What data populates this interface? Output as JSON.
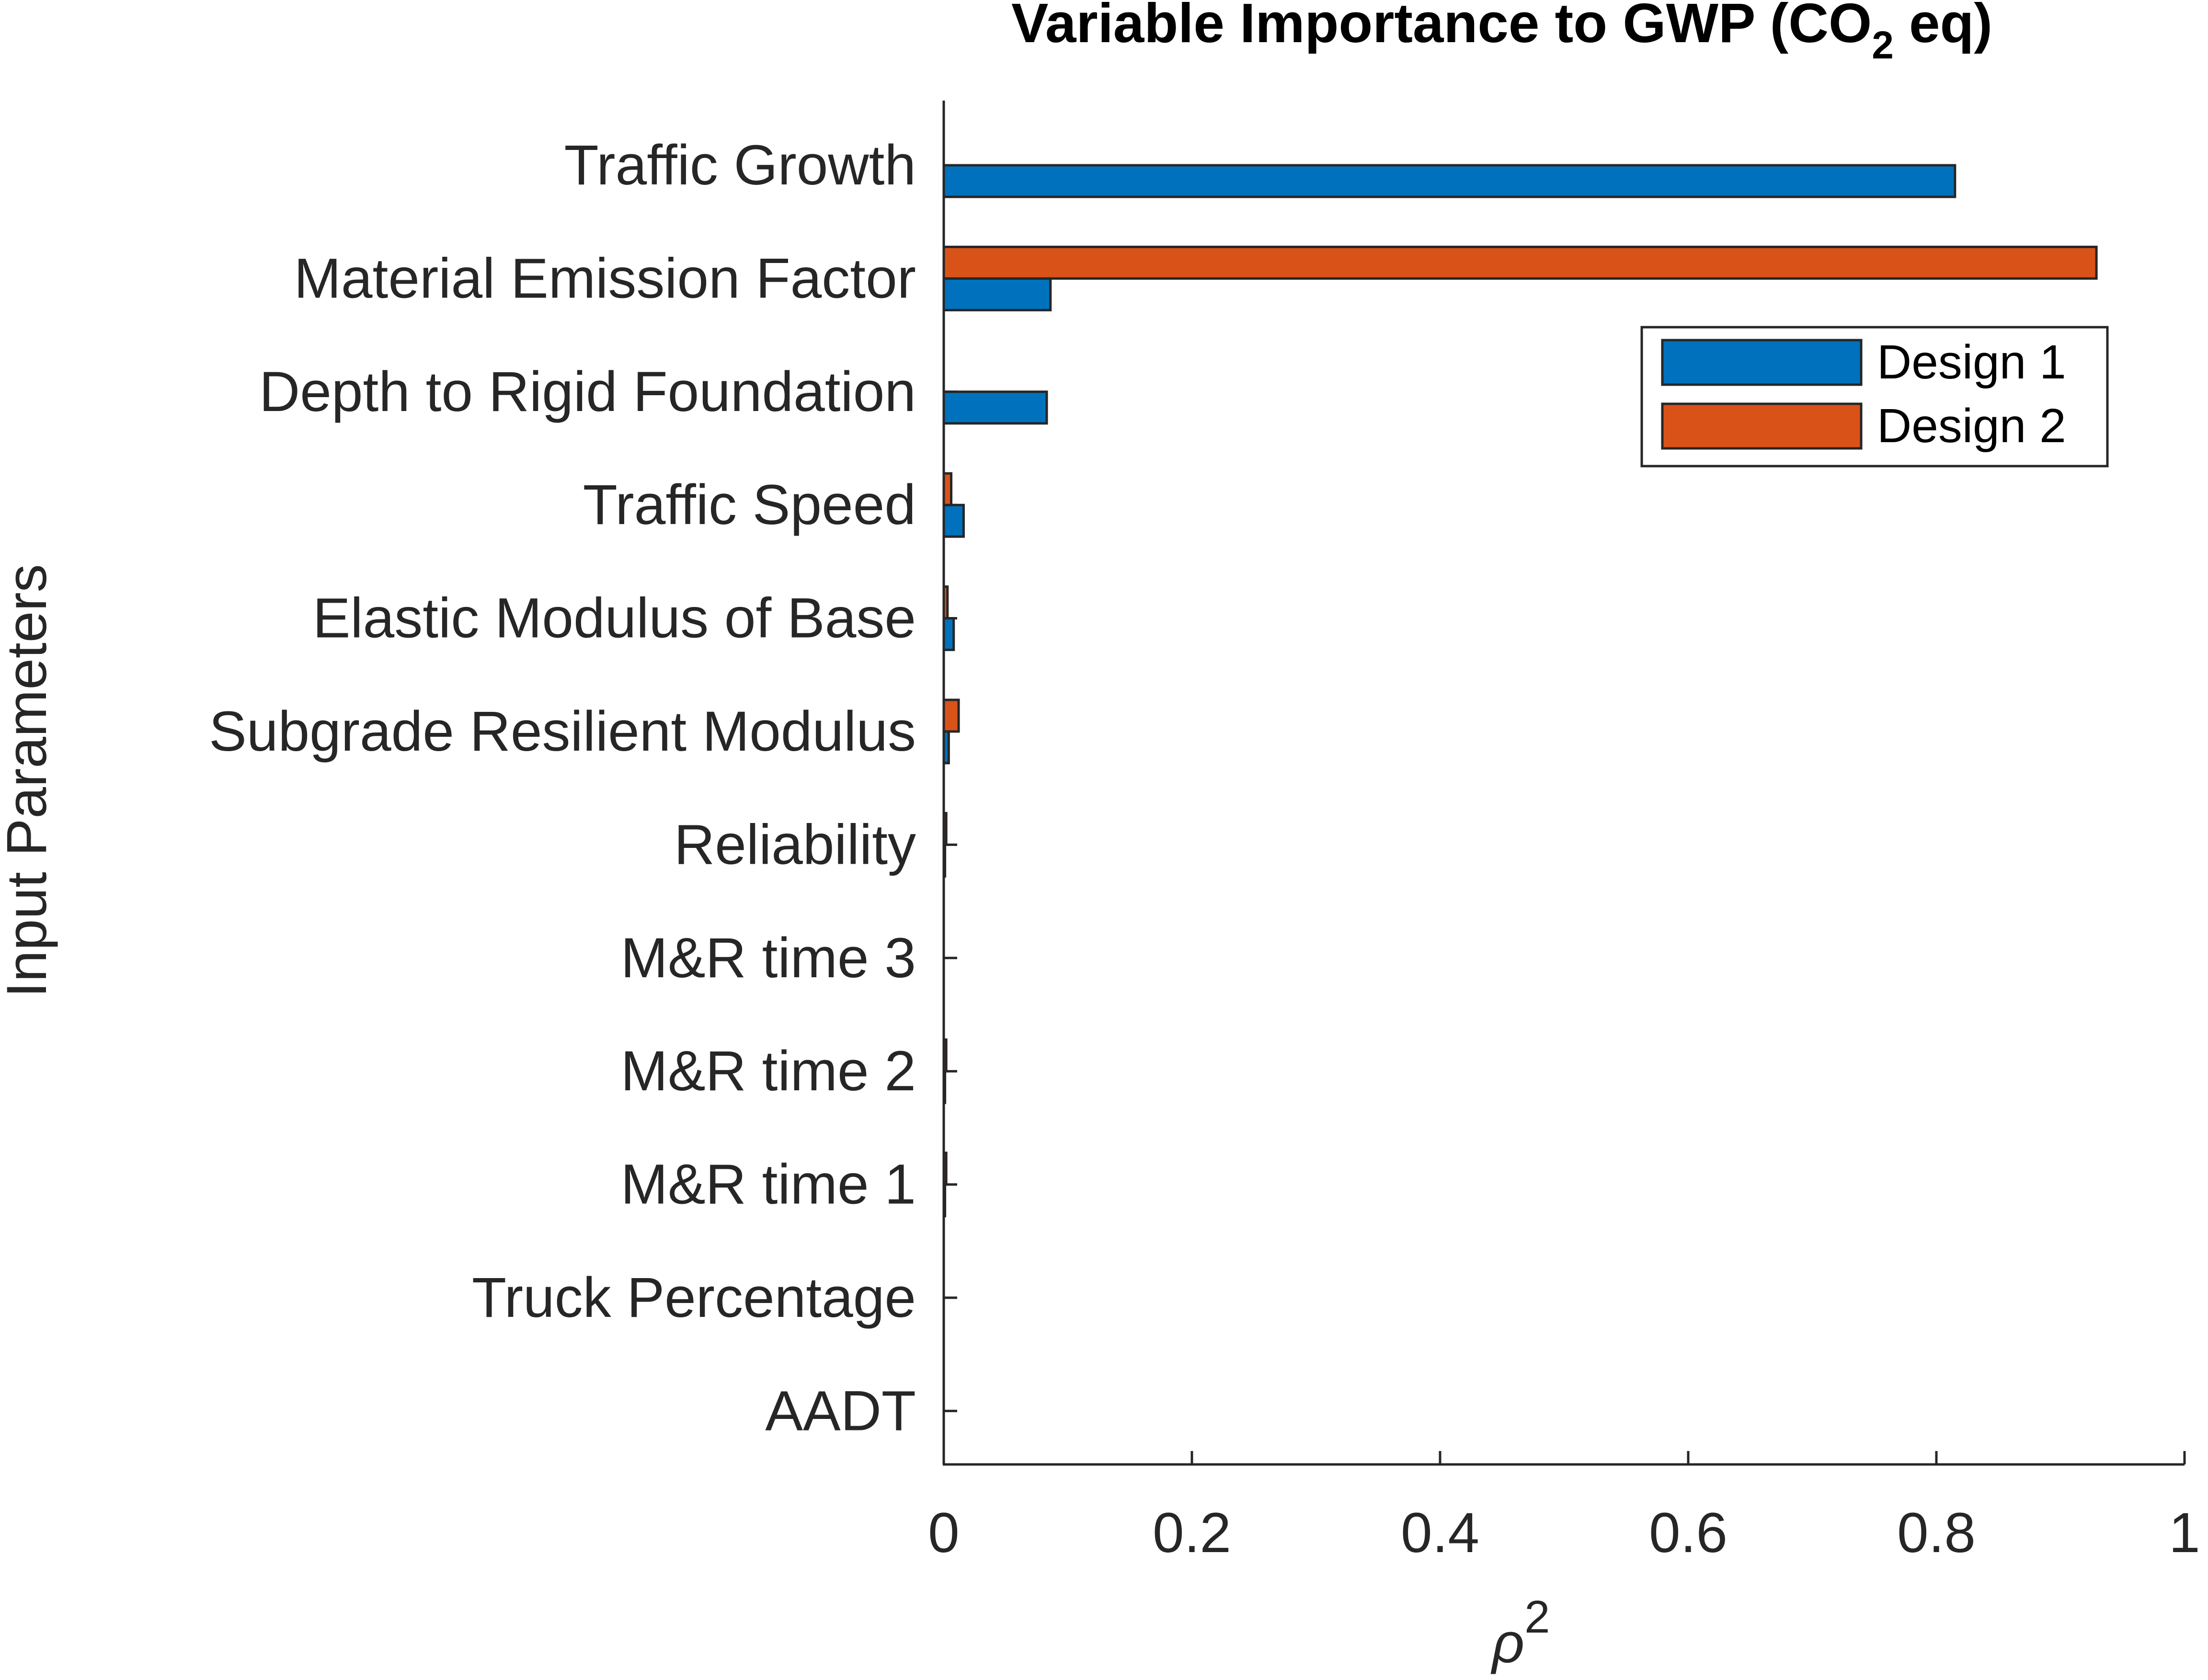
{
  "chart_data": {
    "type": "bar",
    "orientation": "horizontal",
    "title": {
      "prefix": "Variable Importance to GWP (CO",
      "subscript": "2",
      "suffix": " eq)"
    },
    "xlabel": {
      "base": "ρ",
      "superscript": "2"
    },
    "ylabel": "Input Parameters",
    "categories": [
      "Traffic Growth",
      "Material Emission Factor",
      "Depth to Rigid Foundation",
      "Traffic Speed",
      "Elastic Modulus of Base",
      "Subgrade Resilient Modulus",
      "Reliability",
      "M&R time 3",
      "M&R time 2",
      "M&R time 1",
      "Truck Percentage",
      "AADT"
    ],
    "series": [
      {
        "name": "Design 1",
        "color": "#0072BD",
        "values": [
          0.815,
          0.086,
          0.083,
          0.016,
          0.008,
          0.004,
          0.001,
          0.0,
          0.001,
          0.001,
          0.0,
          0.0
        ]
      },
      {
        "name": "Design 2",
        "color": "#D95319",
        "values": [
          0.0,
          0.929,
          0.0,
          0.006,
          0.003,
          0.012,
          0.002,
          0.0,
          0.002,
          0.002,
          0.0,
          0.0
        ]
      }
    ],
    "xlim": [
      0,
      1
    ],
    "xticks": [
      "0",
      "0.2",
      "0.4",
      "0.6",
      "0.8",
      "1"
    ],
    "grid": false,
    "legend_position": "top-right"
  }
}
